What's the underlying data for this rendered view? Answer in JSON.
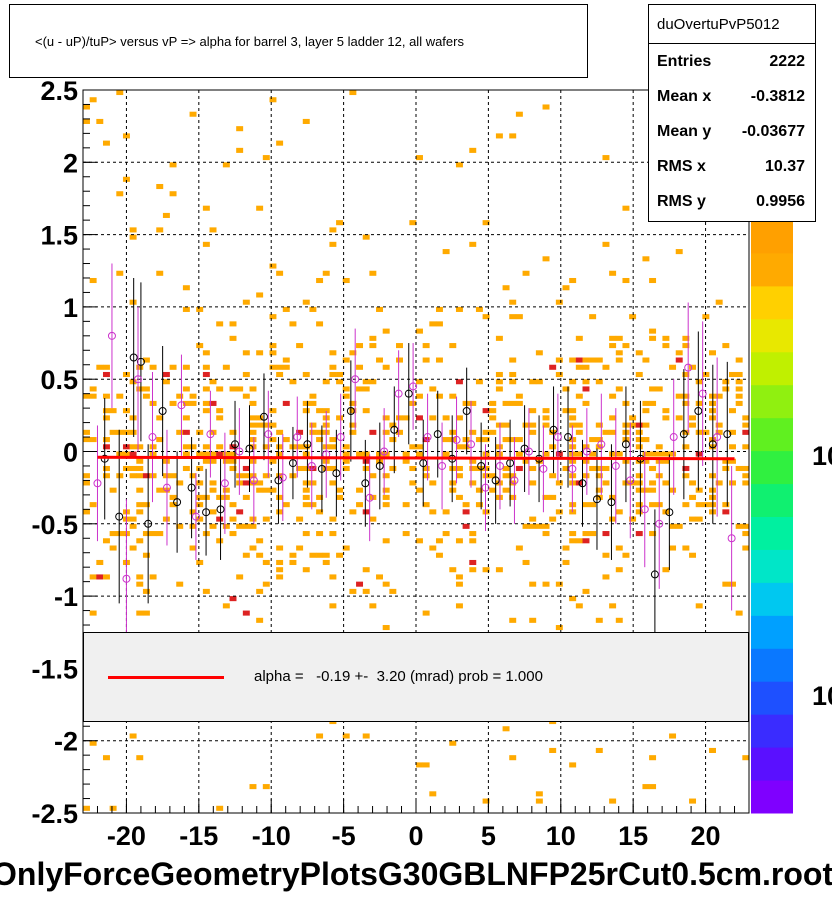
{
  "title": "<(u - uP)/tuP> versus   vP => alpha for barrel 3, layer 5 ladder 12, all wafers",
  "stats": {
    "name": "duOvertuPvP5012",
    "rows": [
      {
        "label": "Entries",
        "value": "2222"
      },
      {
        "label": "Mean x",
        "value": "-0.3812"
      },
      {
        "label": "Mean y",
        "value": "-0.03677"
      },
      {
        "label": "RMS x",
        "value": "10.37"
      },
      {
        "label": "RMS y",
        "value": "0.9956"
      }
    ]
  },
  "fit_legend": "alpha =   -0.19 +-  3.20 (mrad) prob = 1.000",
  "footer": "OnlyForceGeometryPlotsG30GBLNFP25rCut0.5cm.root",
  "colors": {
    "fit": "#ff0000",
    "profile_a": "#000000",
    "profile_b": "#cc33cc",
    "heat_low": "#ffaa00",
    "heat_high": "#dd2222"
  },
  "chart_data": {
    "type": "scatter",
    "xlim": [
      -23,
      23
    ],
    "ylim": [
      -2.5,
      2.5
    ],
    "x_ticks": [
      -20,
      -15,
      -10,
      -5,
      0,
      5,
      10,
      15,
      20
    ],
    "x_tick_labels": [
      "-20",
      "-15",
      "-10",
      "-5",
      "0",
      "5",
      "10",
      "15",
      "20"
    ],
    "y_ticks": [
      -2.5,
      -2,
      -1.5,
      -1,
      -0.5,
      0,
      0.5,
      1,
      1.5,
      2,
      2.5
    ],
    "y_tick_labels": [
      "-2.5",
      "-2",
      "-1.5",
      "-1",
      "-0.5",
      "0",
      "0.5",
      "1",
      "1.5",
      "2",
      "2.5"
    ],
    "grid": true,
    "z_scale": "log",
    "z_tick_labels": [
      "10",
      "10"
    ],
    "fit": {
      "x": [
        -22,
        22
      ],
      "y": [
        -0.04,
        -0.05
      ]
    },
    "series": [
      {
        "marker": "open-circle-black",
        "x": [
          -21.5,
          -20.5,
          -19.5,
          -19,
          -18.5,
          -17.5,
          -16.5,
          -15.5,
          -14.5,
          -13.5,
          -12.5,
          -11.5,
          -10.5,
          -9.5,
          -8.5,
          -7.5,
          -6.5,
          -5.5,
          -4.5,
          -3.5,
          -2.5,
          -1.5,
          -0.5,
          0.5,
          1.5,
          2.5,
          3.5,
          4.5,
          5.5,
          6.5,
          7.5,
          8.5,
          9.5,
          10.5,
          11.5,
          12.5,
          13.5,
          14.5,
          15.5,
          16.5,
          17.5,
          18.5,
          19.5,
          20.5,
          21.5
        ],
        "y": [
          -0.05,
          -0.45,
          0.65,
          0.62,
          -0.5,
          0.28,
          -0.35,
          -0.25,
          -0.42,
          -0.4,
          0.05,
          0.02,
          0.24,
          -0.2,
          -0.08,
          0.05,
          -0.12,
          -0.15,
          0.28,
          -0.22,
          -0.1,
          0.15,
          0.4,
          -0.08,
          0.12,
          -0.05,
          0.28,
          -0.1,
          -0.2,
          -0.08,
          0.02,
          -0.05,
          0.15,
          0.1,
          -0.22,
          -0.33,
          -0.35,
          0.05,
          -0.05,
          -0.85,
          -0.42,
          0.12,
          0.28,
          0.05,
          0.12
        ],
        "err": [
          0.42,
          0.6,
          0.55,
          0.55,
          0.55,
          0.45,
          0.35,
          0.35,
          0.3,
          0.35,
          0.3,
          0.3,
          0.3,
          0.3,
          0.25,
          0.3,
          0.3,
          0.3,
          0.35,
          0.3,
          0.3,
          0.3,
          0.35,
          0.3,
          0.3,
          0.3,
          0.3,
          0.3,
          0.3,
          0.3,
          0.3,
          0.3,
          0.3,
          0.35,
          0.3,
          0.35,
          0.4,
          0.4,
          0.4,
          0.45,
          0.4,
          0.45,
          0.55,
          0.55,
          0.5
        ]
      },
      {
        "marker": "open-circle-magenta",
        "x": [
          -22,
          -21,
          -20,
          -19.2,
          -18.2,
          -17.2,
          -16.2,
          -15.2,
          -14.2,
          -13.2,
          -12.2,
          -11.2,
          -10.2,
          -9.2,
          -8.2,
          -7.2,
          -6.2,
          -5.2,
          -4.2,
          -3.2,
          -2.2,
          -1.2,
          -0.2,
          0.8,
          1.8,
          2.8,
          3.8,
          4.8,
          5.8,
          6.8,
          7.8,
          8.8,
          9.8,
          10.8,
          11.8,
          12.8,
          13.8,
          14.8,
          15.8,
          16.8,
          17.8,
          18.8,
          19.8,
          20.8,
          21.8
        ],
        "y": [
          -0.22,
          0.8,
          -0.88,
          0.5,
          0.1,
          -0.25,
          0.32,
          -0.45,
          0.12,
          -0.22,
          0.0,
          -0.2,
          0.12,
          -0.18,
          0.1,
          -0.1,
          -0.02,
          0.1,
          0.5,
          -0.32,
          0.0,
          0.4,
          0.45,
          0.1,
          -0.1,
          0.08,
          0.05,
          -0.25,
          -0.1,
          -0.2,
          0.0,
          -0.12,
          0.1,
          -0.12,
          0.0,
          0.05,
          -0.1,
          -0.2,
          -0.4,
          -0.5,
          0.1,
          0.58,
          0.4,
          0.1,
          -0.6
        ],
        "err": [
          0.4,
          0.5,
          0.55,
          0.5,
          0.45,
          0.4,
          0.35,
          0.3,
          0.3,
          0.35,
          0.3,
          0.3,
          0.3,
          0.3,
          0.28,
          0.3,
          0.3,
          0.3,
          0.35,
          0.3,
          0.3,
          0.3,
          0.3,
          0.3,
          0.3,
          0.3,
          0.3,
          0.3,
          0.3,
          0.3,
          0.3,
          0.3,
          0.3,
          0.3,
          0.3,
          0.35,
          0.4,
          0.4,
          0.4,
          0.45,
          0.4,
          0.45,
          0.5,
          0.55,
          0.5
        ]
      }
    ]
  }
}
